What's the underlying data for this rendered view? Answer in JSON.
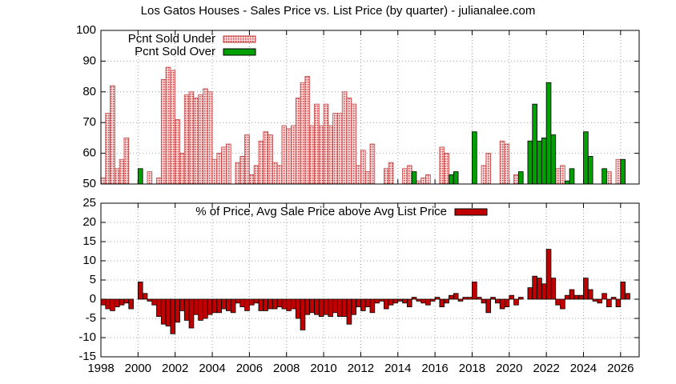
{
  "chart_data": [
    {
      "type": "bar",
      "title": "Los Gatos Houses - Sales Price vs. List Price (by quarter) - julianalee.com",
      "x": [
        1998,
        1998.25,
        1998.5,
        1998.75,
        1999,
        1999.25,
        1999.5,
        1999.75,
        2000,
        2000.25,
        2000.5,
        2000.75,
        2001,
        2001.25,
        2001.5,
        2001.75,
        2002,
        2002.25,
        2002.5,
        2002.75,
        2003,
        2003.25,
        2003.5,
        2003.75,
        2004,
        2004.25,
        2004.5,
        2004.75,
        2005,
        2005.25,
        2005.5,
        2005.75,
        2006,
        2006.25,
        2006.5,
        2006.75,
        2007,
        2007.25,
        2007.5,
        2007.75,
        2008,
        2008.25,
        2008.5,
        2008.75,
        2009,
        2009.25,
        2009.5,
        2009.75,
        2010,
        2010.25,
        2010.5,
        2010.75,
        2011,
        2011.25,
        2011.5,
        2011.75,
        2012,
        2012.25,
        2012.5,
        2012.75,
        2013,
        2013.25,
        2013.5,
        2013.75,
        2014,
        2014.25,
        2014.5,
        2014.75,
        2015,
        2015.25,
        2015.5,
        2015.75,
        2016,
        2016.25,
        2016.5,
        2016.75,
        2017,
        2017.25,
        2017.5,
        2017.75,
        2018,
        2018.25,
        2018.5,
        2018.75,
        2019,
        2019.25,
        2019.5,
        2019.75,
        2020,
        2020.25,
        2020.5,
        2020.75,
        2021,
        2021.25,
        2021.5,
        2021.75,
        2022,
        2022.25,
        2022.5,
        2022.75,
        2023,
        2023.25,
        2023.5,
        2023.75,
        2024,
        2024.25,
        2024.5,
        2024.75,
        2025,
        2025.25,
        2025.5,
        2025.75,
        2026,
        2026.25
      ],
      "series": [
        {
          "name": "Pcnt Sold Under",
          "color": "#f2b8b8",
          "values": [
            52,
            73,
            82,
            55,
            58,
            65,
            null,
            null,
            null,
            null,
            54,
            null,
            52,
            84,
            88,
            87,
            71,
            60,
            79,
            80,
            78,
            79,
            81,
            80,
            58,
            60,
            62,
            63,
            null,
            57,
            59,
            66,
            53,
            56,
            64,
            67,
            66,
            57,
            56,
            69,
            68,
            69,
            78,
            83,
            85,
            69,
            76,
            69,
            76,
            69,
            73,
            73,
            80,
            78,
            76,
            56,
            61,
            54,
            63,
            null,
            null,
            55,
            57,
            null,
            null,
            55,
            56,
            null,
            51,
            52,
            53,
            null,
            null,
            62,
            60,
            null,
            null,
            null,
            null,
            null,
            null,
            null,
            56,
            60,
            null,
            null,
            64,
            63,
            null,
            53,
            null,
            null,
            null,
            null,
            null,
            null,
            null,
            null,
            55,
            56,
            null,
            null,
            null,
            null,
            null,
            null,
            null,
            null,
            null,
            54,
            null,
            58,
            null,
            null
          ]
        },
        {
          "name": "Pcnt Sold Over",
          "color": "#00a000",
          "values": [
            null,
            null,
            null,
            null,
            null,
            null,
            null,
            null,
            55,
            null,
            null,
            null,
            null,
            null,
            null,
            null,
            null,
            null,
            null,
            null,
            null,
            null,
            null,
            null,
            null,
            null,
            null,
            null,
            null,
            null,
            null,
            null,
            null,
            null,
            null,
            null,
            null,
            null,
            null,
            null,
            null,
            null,
            null,
            null,
            null,
            null,
            null,
            null,
            null,
            null,
            null,
            null,
            null,
            null,
            null,
            null,
            null,
            null,
            null,
            null,
            null,
            null,
            null,
            null,
            null,
            null,
            null,
            54,
            null,
            null,
            null,
            null,
            null,
            null,
            null,
            53,
            54,
            null,
            null,
            null,
            67,
            null,
            null,
            null,
            null,
            null,
            null,
            null,
            null,
            null,
            54,
            null,
            64,
            76,
            64,
            65,
            83,
            66,
            null,
            null,
            51,
            55,
            null,
            null,
            67,
            59,
            null,
            null,
            55,
            null,
            null,
            null,
            58,
            null
          ]
        }
      ],
      "xlim": [
        1998,
        2027
      ],
      "xticks": [
        1998,
        2000,
        2002,
        2004,
        2006,
        2008,
        2010,
        2012,
        2014,
        2016,
        2018,
        2020,
        2022,
        2024,
        2026
      ],
      "ylim": [
        50,
        100
      ],
      "yticks": [
        50,
        60,
        70,
        80,
        90,
        100
      ],
      "grid": true,
      "legend": "top-left"
    },
    {
      "type": "bar",
      "x": [
        1998,
        1998.25,
        1998.5,
        1998.75,
        1999,
        1999.25,
        1999.5,
        1999.75,
        2000,
        2000.25,
        2000.5,
        2000.75,
        2001,
        2001.25,
        2001.5,
        2001.75,
        2002,
        2002.25,
        2002.5,
        2002.75,
        2003,
        2003.25,
        2003.5,
        2003.75,
        2004,
        2004.25,
        2004.5,
        2004.75,
        2005,
        2005.25,
        2005.5,
        2005.75,
        2006,
        2006.25,
        2006.5,
        2006.75,
        2007,
        2007.25,
        2007.5,
        2007.75,
        2008,
        2008.25,
        2008.5,
        2008.75,
        2009,
        2009.25,
        2009.5,
        2009.75,
        2010,
        2010.25,
        2010.5,
        2010.75,
        2011,
        2011.25,
        2011.5,
        2011.75,
        2012,
        2012.25,
        2012.5,
        2012.75,
        2013,
        2013.25,
        2013.5,
        2013.75,
        2014,
        2014.25,
        2014.5,
        2014.75,
        2015,
        2015.25,
        2015.5,
        2015.75,
        2016,
        2016.25,
        2016.5,
        2016.75,
        2017,
        2017.25,
        2017.5,
        2017.75,
        2018,
        2018.25,
        2018.5,
        2018.75,
        2019,
        2019.25,
        2019.5,
        2019.75,
        2020,
        2020.25,
        2020.5,
        2020.75,
        2021,
        2021.25,
        2021.5,
        2021.75,
        2022,
        2022.25,
        2022.5,
        2022.75,
        2023,
        2023.25,
        2023.5,
        2023.75,
        2024,
        2024.25,
        2024.5,
        2024.75,
        2025,
        2025.25,
        2025.5,
        2025.75,
        2026,
        2026.25
      ],
      "series": [
        {
          "name": "% of Price, Avg Sale Price above Avg List Price",
          "color": "#c00000",
          "values": [
            -1.5,
            -2.5,
            -3,
            -2,
            -1.5,
            -1,
            -2.5,
            null,
            4.5,
            1.5,
            -0.5,
            -1.5,
            -4.5,
            -6.5,
            -7,
            -9,
            -6,
            -3,
            -5.5,
            -7.5,
            -4,
            -5.5,
            -5,
            -4,
            -3.5,
            -3.5,
            -2.5,
            -3,
            -3.5,
            -1,
            -2,
            -3,
            -1.5,
            -1,
            -3,
            -3,
            -2.5,
            -2.5,
            -2,
            -2.5,
            -3,
            -2.5,
            -5,
            -8,
            -4,
            -3.5,
            -4,
            -4.5,
            -4,
            -4.5,
            -3.5,
            -4.5,
            -4.5,
            -6.5,
            -4,
            -2,
            -3,
            -2,
            -3.5,
            -1,
            -0.5,
            -2.5,
            -1.5,
            -1,
            -0.5,
            -1,
            -2,
            0.5,
            -0.5,
            -1,
            -1.5,
            -0.5,
            0.5,
            -2,
            -1,
            1,
            1.5,
            -0.5,
            0.5,
            0.5,
            4.5,
            0.5,
            -1,
            -3.5,
            0.5,
            -1,
            -2.5,
            -2,
            1,
            -1.5,
            0.5,
            0,
            3,
            6,
            5.5,
            4,
            13,
            5.5,
            -1.5,
            -2.5,
            1,
            2.5,
            1,
            1,
            5.5,
            2.5,
            -0.5,
            -1,
            1.5,
            -2,
            0.5,
            -2,
            4.5,
            1.5
          ]
        }
      ],
      "xlim": [
        1998,
        2027
      ],
      "xticks": [
        1998,
        2000,
        2002,
        2004,
        2006,
        2008,
        2010,
        2012,
        2014,
        2016,
        2018,
        2020,
        2022,
        2024,
        2026
      ],
      "ylim": [
        -15,
        25
      ],
      "yticks": [
        -15,
        -10,
        -5,
        0,
        5,
        10,
        15,
        20,
        25
      ],
      "grid": true,
      "legend": "top-center"
    }
  ]
}
